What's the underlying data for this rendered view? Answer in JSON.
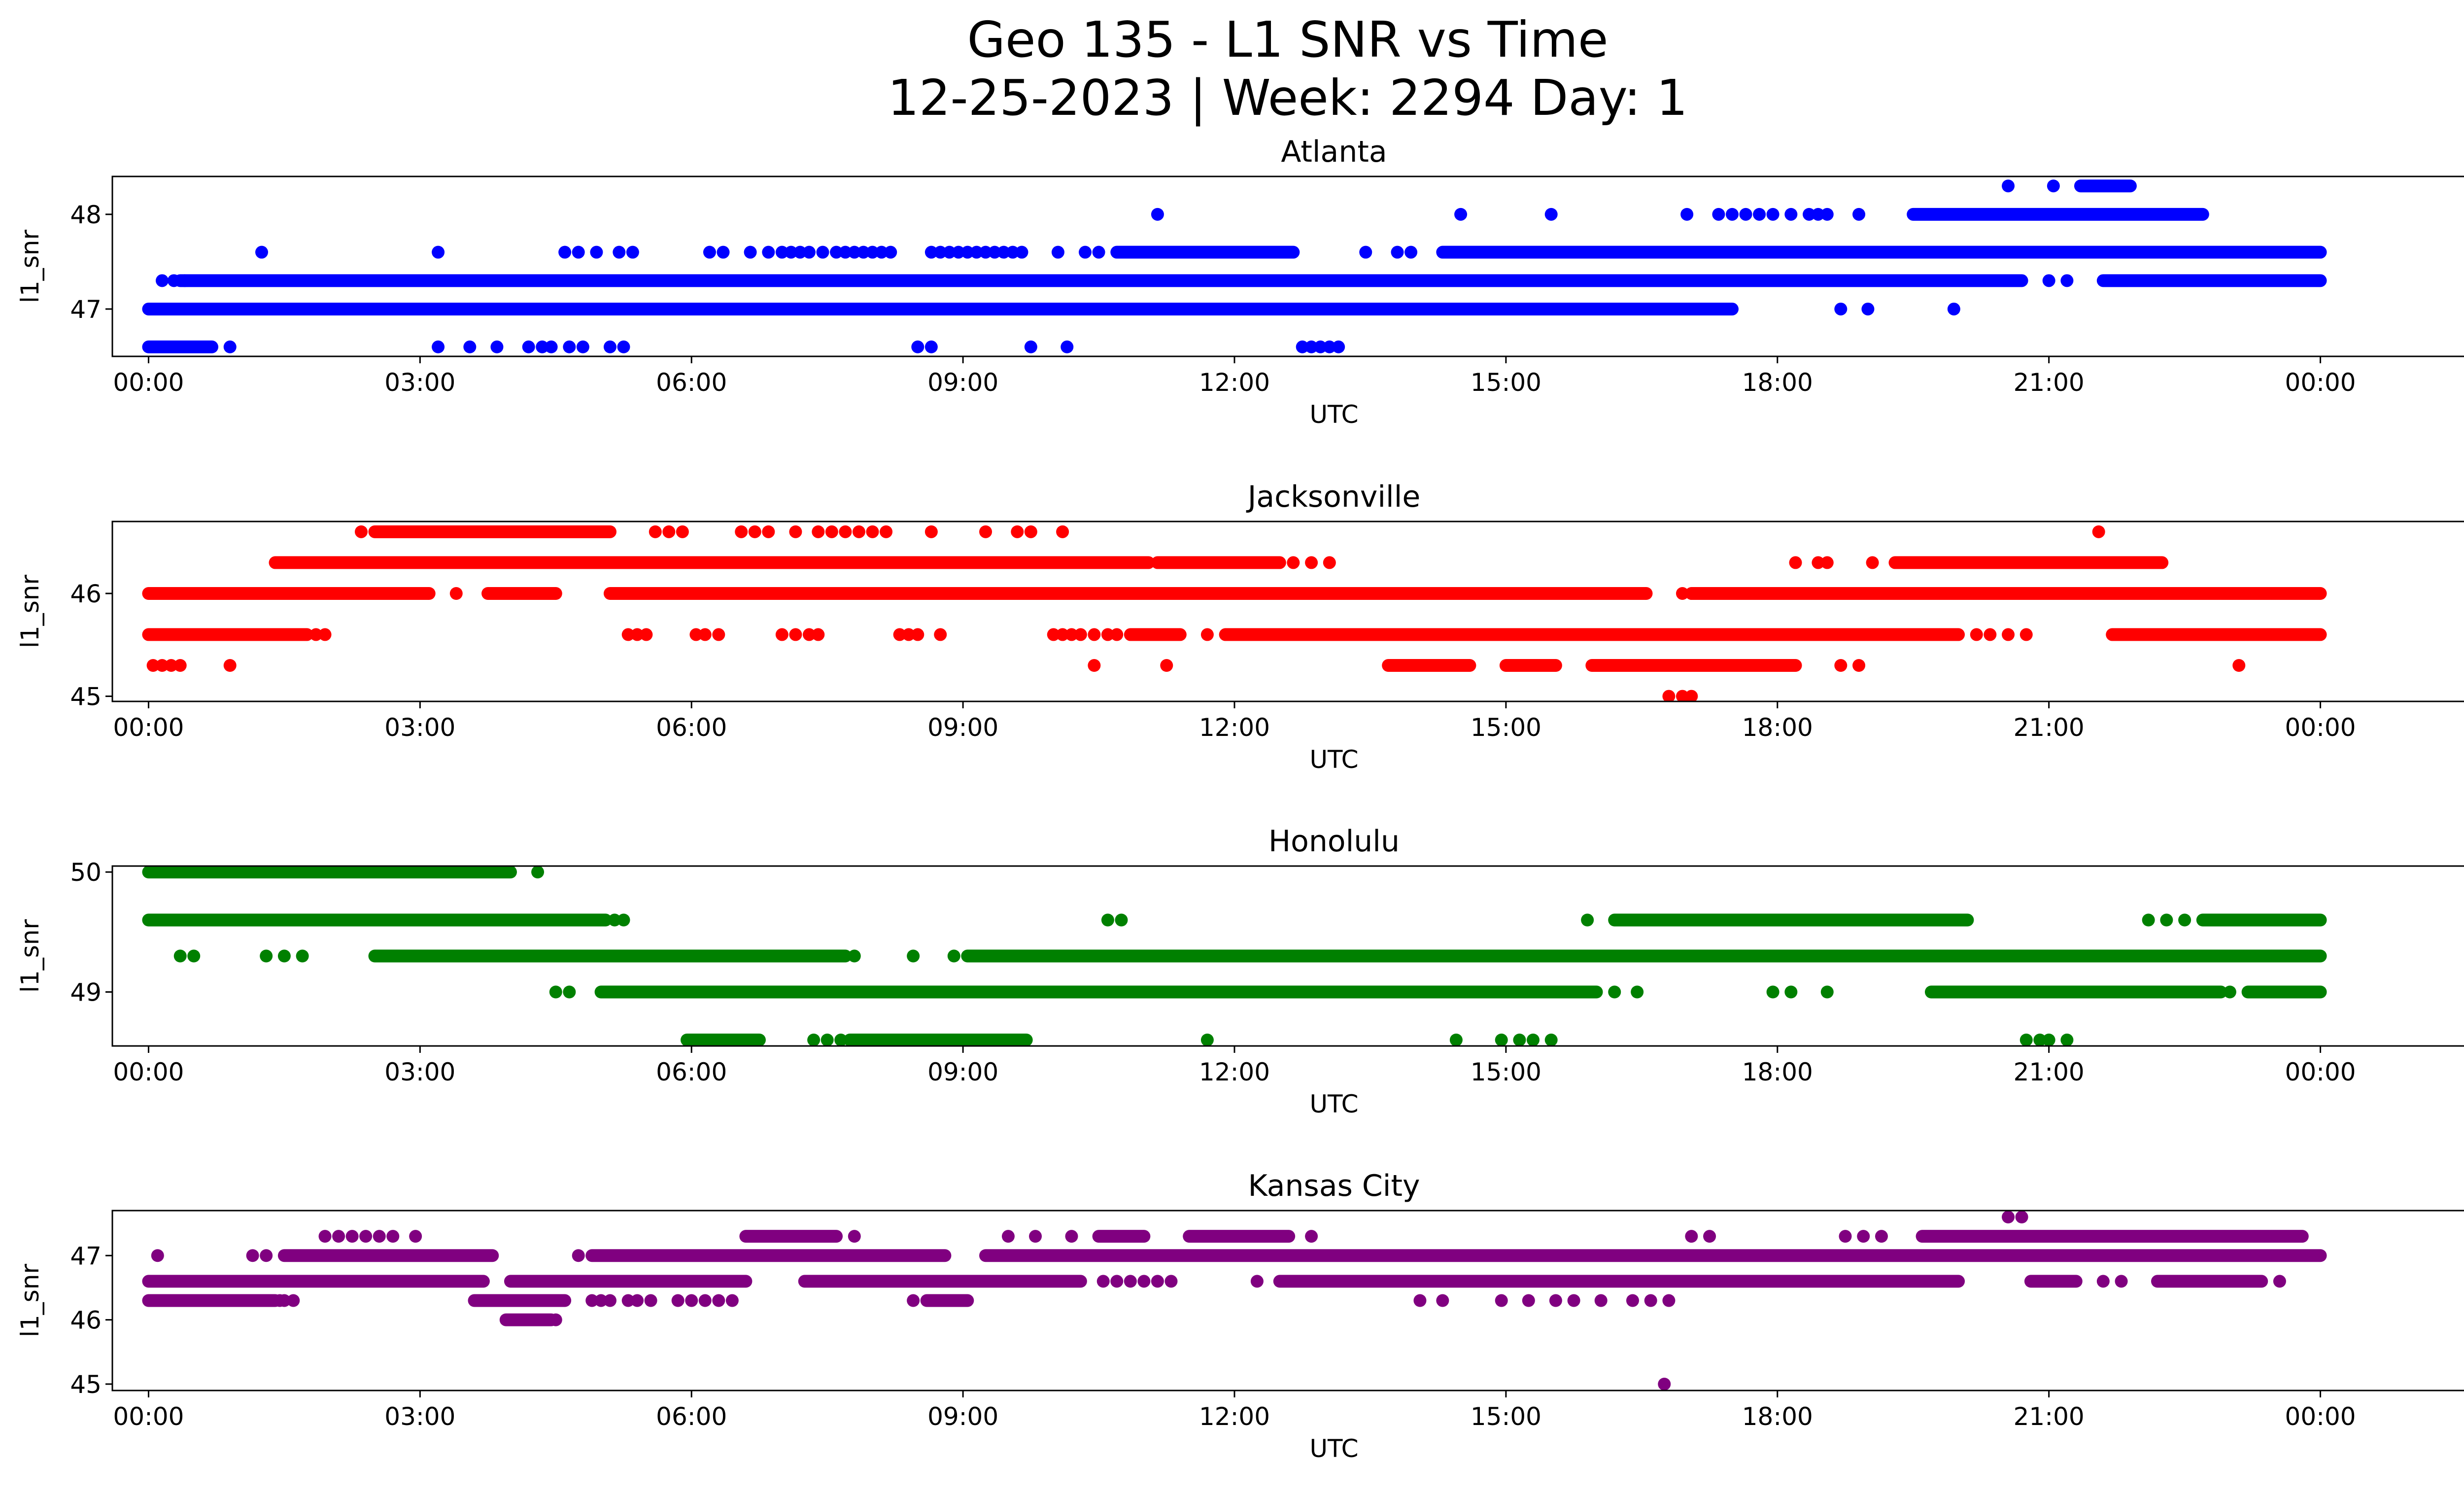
{
  "figure": {
    "title_line1": "Geo 135 - L1 SNR vs Time",
    "title_line2": "12-25-2023 | Week: 2294 Day: 1"
  },
  "chart_data": [
    {
      "type": "scatter",
      "title": "Atlanta",
      "xlabel": "UTC",
      "ylabel": "l1_snr",
      "color": "#0000ff",
      "x_unit": "hours UTC (0 = 00:00 12-25-2023, 24 = 00:00 next day)",
      "x_ticks": [
        "00:00",
        "03:00",
        "06:00",
        "09:00",
        "12:00",
        "15:00",
        "18:00",
        "21:00",
        "00:00"
      ],
      "y_ticks": [
        47,
        48
      ],
      "ylim": [
        46.5,
        48.4
      ],
      "grid": false,
      "legend": "none",
      "series": [
        {
          "y": 47.3,
          "ranges": [
            [
              0.35,
              20.7
            ],
            [
              21.6,
              24.0
            ]
          ],
          "points": [
            0.15,
            0.28,
            0.4,
            21.0,
            21.2
          ]
        },
        {
          "y": 47.6,
          "ranges": [
            [
              10.7,
              12.65
            ],
            [
              14.3,
              24.0
            ]
          ],
          "points": [
            1.25,
            3.2,
            4.6,
            4.75,
            4.95,
            5.2,
            5.35,
            6.2,
            6.35,
            6.65,
            6.85,
            7.0,
            7.1,
            7.2,
            7.3,
            7.45,
            7.6,
            7.7,
            7.8,
            7.9,
            8.0,
            8.1,
            8.2,
            8.65,
            8.75,
            8.85,
            8.95,
            9.05,
            9.15,
            9.25,
            9.35,
            9.45,
            9.55,
            9.65,
            10.05,
            10.35,
            10.5,
            13.45,
            13.8,
            13.95
          ]
        },
        {
          "y": 47.0,
          "ranges": [
            [
              0.0,
              17.5
            ]
          ],
          "points": [
            18.7,
            19.0,
            19.95
          ]
        },
        {
          "y": 46.6,
          "ranges": [
            [
              0.0,
              0.7
            ]
          ],
          "points": [
            0.9,
            3.2,
            3.55,
            3.85,
            4.2,
            4.35,
            4.45,
            4.65,
            4.8,
            5.1,
            5.25,
            8.5,
            8.65,
            9.75,
            10.15,
            12.75,
            12.85,
            12.95,
            13.05,
            13.15
          ]
        },
        {
          "y": 48.0,
          "ranges": [
            [
              19.5,
              22.7
            ]
          ],
          "points": [
            11.15,
            14.5,
            15.5,
            17.0,
            17.35,
            17.5,
            17.65,
            17.8,
            17.95,
            18.15,
            18.35,
            18.45,
            18.55,
            18.9
          ]
        },
        {
          "y": 48.3,
          "ranges": [
            [
              21.35,
              21.9
            ]
          ],
          "points": [
            20.55,
            21.05
          ]
        }
      ]
    },
    {
      "type": "scatter",
      "title": "Jacksonville",
      "xlabel": "UTC",
      "ylabel": "l1_snr",
      "color": "#ff0000",
      "x_unit": "hours UTC (0 = 00:00 12-25-2023, 24 = 00:00 next day)",
      "x_ticks": [
        "00:00",
        "03:00",
        "06:00",
        "09:00",
        "12:00",
        "15:00",
        "18:00",
        "21:00",
        "00:00"
      ],
      "y_ticks": [
        45,
        46
      ],
      "ylim": [
        44.95,
        46.7
      ],
      "grid": false,
      "legend": "none",
      "series": [
        {
          "y": 46.3,
          "ranges": [
            [
              1.4,
              11.05
            ],
            [
              11.15,
              12.5
            ],
            [
              19.3,
              22.25
            ]
          ],
          "points": [
            12.65,
            12.85,
            13.05,
            18.2,
            18.45,
            18.55,
            19.05
          ]
        },
        {
          "y": 46.0,
          "ranges": [
            [
              0.0,
              3.1
            ],
            [
              3.75,
              4.5
            ],
            [
              5.1,
              16.55
            ],
            [
              17.05,
              24.0
            ]
          ],
          "points": [
            3.4,
            16.95
          ]
        },
        {
          "y": 45.6,
          "ranges": [
            [
              0.0,
              1.75
            ],
            [
              10.85,
              11.4
            ],
            [
              11.9,
              20.0
            ],
            [
              21.7,
              24.0
            ]
          ],
          "points": [
            1.85,
            1.95,
            5.3,
            5.4,
            5.5,
            6.05,
            6.15,
            6.3,
            7.0,
            7.15,
            7.3,
            7.4,
            8.3,
            8.4,
            8.5,
            8.75,
            10.0,
            10.1,
            10.2,
            10.3,
            10.45,
            10.6,
            10.7,
            11.7,
            20.2,
            20.35,
            20.55,
            20.75
          ]
        },
        {
          "y": 45.3,
          "ranges": [
            [
              13.7,
              14.6
            ],
            [
              15.0,
              15.55
            ],
            [
              15.95,
              18.2
            ]
          ],
          "points": [
            0.05,
            0.15,
            0.25,
            0.35,
            0.9,
            10.45,
            11.25,
            18.7,
            18.9,
            23.1
          ]
        },
        {
          "y": 46.6,
          "ranges": [
            [
              2.5,
              5.1
            ]
          ],
          "points": [
            2.35,
            5.6,
            5.75,
            5.9,
            6.55,
            6.7,
            6.85,
            7.15,
            7.4,
            7.55,
            7.7,
            7.85,
            8.0,
            8.15,
            8.65,
            9.25,
            9.6,
            9.75,
            10.1,
            21.55
          ]
        },
        {
          "y": 45.0,
          "ranges": [],
          "points": [
            16.8,
            16.95,
            17.05
          ]
        }
      ]
    },
    {
      "type": "scatter",
      "title": "Honolulu",
      "xlabel": "UTC",
      "ylabel": "l1_snr",
      "color": "#008000",
      "x_unit": "hours UTC (0 = 00:00 12-25-2023, 24 = 00:00 next day)",
      "x_ticks": [
        "00:00",
        "03:00",
        "06:00",
        "09:00",
        "12:00",
        "15:00",
        "18:00",
        "21:00",
        "00:00"
      ],
      "y_ticks": [
        49,
        50
      ],
      "ylim": [
        48.55,
        50.05
      ],
      "grid": false,
      "legend": "none",
      "series": [
        {
          "y": 50.0,
          "ranges": [
            [
              0.0,
              4.0
            ]
          ],
          "points": [
            4.3
          ]
        },
        {
          "y": 49.6,
          "ranges": [
            [
              0.0,
              5.05
            ],
            [
              16.2,
              20.1
            ],
            [
              22.7,
              24.0
            ]
          ],
          "points": [
            5.15,
            5.25,
            10.6,
            10.75,
            15.9,
            22.1,
            22.3,
            22.5
          ]
        },
        {
          "y": 49.3,
          "ranges": [
            [
              2.5,
              7.7
            ],
            [
              9.05,
              24.0
            ]
          ],
          "points": [
            0.35,
            0.5,
            1.3,
            1.5,
            1.7,
            7.8,
            8.45,
            8.9
          ]
        },
        {
          "y": 49.0,
          "ranges": [
            [
              5.0,
              16.0
            ],
            [
              19.7,
              22.9
            ],
            [
              23.2,
              24.0
            ]
          ],
          "points": [
            4.5,
            4.65,
            16.2,
            16.45,
            17.95,
            18.15,
            18.55,
            23.0
          ]
        },
        {
          "y": 48.6,
          "ranges": [
            [
              5.95,
              6.75
            ],
            [
              7.75,
              9.7
            ]
          ],
          "points": [
            7.35,
            7.5,
            7.65,
            11.7,
            14.45,
            14.95,
            15.15,
            15.3,
            15.5,
            20.75,
            20.9,
            21.0,
            21.2
          ]
        }
      ]
    },
    {
      "type": "scatter",
      "title": "Kansas City",
      "xlabel": "UTC",
      "ylabel": "l1_snr",
      "color": "#800080",
      "x_unit": "hours UTC (0 = 00:00 12-25-2023, 24 = 00:00 next day)",
      "x_ticks": [
        "00:00",
        "03:00",
        "06:00",
        "09:00",
        "12:00",
        "15:00",
        "18:00",
        "21:00",
        "00:00"
      ],
      "y_ticks": [
        45,
        46,
        47
      ],
      "ylim": [
        44.9,
        47.7
      ],
      "grid": false,
      "legend": "none",
      "series": [
        {
          "y": 47.3,
          "ranges": [
            [
              6.6,
              7.6
            ],
            [
              10.5,
              11.0
            ],
            [
              11.5,
              12.6
            ],
            [
              19.6,
              23.8
            ]
          ],
          "points": [
            1.95,
            2.1,
            2.25,
            2.4,
            2.55,
            2.7,
            2.95,
            7.8,
            9.5,
            9.8,
            10.2,
            12.85,
            17.05,
            17.25,
            18.75,
            18.95,
            19.15
          ]
        },
        {
          "y": 47.0,
          "ranges": [
            [
              1.5,
              3.8
            ],
            [
              4.9,
              8.8
            ],
            [
              9.25,
              24.0
            ]
          ],
          "points": [
            0.1,
            1.15,
            1.3,
            4.75
          ]
        },
        {
          "y": 46.6,
          "ranges": [
            [
              0.0,
              3.7
            ],
            [
              4.0,
              6.6
            ],
            [
              7.25,
              10.3
            ],
            [
              12.5,
              20.0
            ],
            [
              20.8,
              21.3
            ],
            [
              22.2,
              23.35
            ]
          ],
          "points": [
            10.55,
            10.7,
            10.85,
            11.0,
            11.15,
            11.3,
            12.25,
            21.6,
            21.8,
            23.55
          ]
        },
        {
          "y": 46.3,
          "ranges": [
            [
              0.0,
              1.4
            ],
            [
              3.6,
              4.6
            ],
            [
              8.6,
              9.05
            ]
          ],
          "points": [
            1.45,
            1.5,
            1.6,
            4.9,
            5.0,
            5.1,
            5.3,
            5.4,
            5.55,
            5.85,
            6.0,
            6.15,
            6.3,
            6.45,
            8.45,
            14.05,
            14.3,
            14.95,
            15.25,
            15.55,
            15.75,
            16.05,
            16.4,
            16.6,
            16.8
          ]
        },
        {
          "y": 46.0,
          "ranges": [
            [
              3.95,
              4.45
            ]
          ],
          "points": [
            4.5
          ]
        },
        {
          "y": 47.6,
          "ranges": [],
          "points": [
            20.55,
            20.7
          ]
        },
        {
          "y": 45.0,
          "ranges": [],
          "points": [
            16.75
          ]
        }
      ]
    }
  ]
}
